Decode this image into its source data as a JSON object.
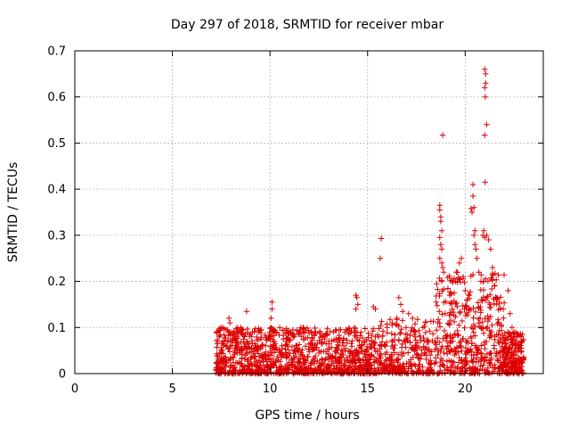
{
  "chart_data": {
    "type": "scatter",
    "title": "Day 297 of 2018, SRMTID for receiver mbar",
    "xlabel": "GPS time / hours",
    "ylabel": "SRMTID / TECUs",
    "xlim": [
      0,
      24
    ],
    "ylim": [
      0,
      0.7
    ],
    "xticks": [
      "0",
      "5",
      "10",
      "15",
      "20"
    ],
    "yticks": [
      "0",
      "0.1",
      "0.2",
      "0.3",
      "0.4",
      "0.5",
      "0.6",
      "0.7"
    ],
    "grid": true,
    "marker": "+",
    "color": "#dd0000",
    "series": [
      {
        "name": "mbar",
        "density_bands": [
          {
            "t_start": 7.2,
            "t_end": 15.5,
            "y_base": 0.0,
            "y_max": 0.1,
            "approx_points": 1100
          },
          {
            "t_start": 15.5,
            "t_end": 18.5,
            "y_base": 0.0,
            "y_max": 0.12,
            "approx_points": 300
          },
          {
            "t_start": 18.5,
            "t_end": 22.0,
            "y_base": 0.0,
            "y_max": 0.22,
            "approx_points": 450
          },
          {
            "t_start": 22.0,
            "t_end": 23.0,
            "y_base": 0.0,
            "y_max": 0.09,
            "approx_points": 200
          }
        ],
        "points": [
          [
            7.4,
            0.08
          ],
          [
            7.9,
            0.12
          ],
          [
            7.95,
            0.11
          ],
          [
            8.8,
            0.135
          ],
          [
            8.5,
            0.1
          ],
          [
            9.1,
            0.09
          ],
          [
            10.1,
            0.155
          ],
          [
            10.1,
            0.14
          ],
          [
            10.05,
            0.12
          ],
          [
            11.7,
            0.1
          ],
          [
            12.3,
            0.09
          ],
          [
            14.4,
            0.17
          ],
          [
            14.45,
            0.165
          ],
          [
            14.5,
            0.15
          ],
          [
            14.4,
            0.14
          ],
          [
            15.3,
            0.145
          ],
          [
            15.4,
            0.14
          ],
          [
            15.7,
            0.293
          ],
          [
            15.65,
            0.25
          ],
          [
            16.0,
            0.1
          ],
          [
            16.5,
            0.12
          ],
          [
            16.6,
            0.165
          ],
          [
            16.7,
            0.15
          ],
          [
            16.8,
            0.135
          ],
          [
            17.1,
            0.13
          ],
          [
            17.3,
            0.12
          ],
          [
            18.7,
            0.365
          ],
          [
            18.7,
            0.355
          ],
          [
            18.75,
            0.34
          ],
          [
            18.75,
            0.33
          ],
          [
            18.8,
            0.31
          ],
          [
            18.7,
            0.295
          ],
          [
            18.75,
            0.28
          ],
          [
            18.8,
            0.27
          ],
          [
            18.7,
            0.25
          ],
          [
            18.8,
            0.24
          ],
          [
            18.85,
            0.23
          ],
          [
            18.9,
            0.22
          ],
          [
            18.8,
            0.2
          ],
          [
            18.85,
            0.517
          ],
          [
            19.2,
            0.17
          ],
          [
            19.5,
            0.2
          ],
          [
            19.6,
            0.22
          ],
          [
            19.7,
            0.24
          ],
          [
            19.8,
            0.25
          ],
          [
            19.9,
            0.21
          ],
          [
            20.0,
            0.18
          ],
          [
            20.1,
            0.16
          ],
          [
            20.3,
            0.358
          ],
          [
            20.35,
            0.35
          ],
          [
            20.4,
            0.41
          ],
          [
            20.4,
            0.385
          ],
          [
            20.45,
            0.36
          ],
          [
            20.5,
            0.31
          ],
          [
            20.45,
            0.3
          ],
          [
            20.5,
            0.28
          ],
          [
            20.55,
            0.27
          ],
          [
            20.6,
            0.25
          ],
          [
            20.7,
            0.22
          ],
          [
            20.8,
            0.2
          ],
          [
            20.9,
            0.3
          ],
          [
            20.95,
            0.31
          ],
          [
            21.0,
            0.2954
          ],
          [
            21.0,
            0.517
          ],
          [
            21.02,
            0.415
          ],
          [
            21.03,
            0.6
          ],
          [
            21.0,
            0.66
          ],
          [
            21.05,
            0.65
          ],
          [
            21.05,
            0.63
          ],
          [
            21.0,
            0.62
          ],
          [
            21.1,
            0.54
          ],
          [
            21.1,
            0.3
          ],
          [
            21.2,
            0.29
          ],
          [
            21.3,
            0.27
          ],
          [
            21.4,
            0.23
          ],
          [
            21.5,
            0.19
          ],
          [
            21.6,
            0.16
          ],
          [
            22.2,
            0.18
          ],
          [
            22.3,
            0.13
          ],
          [
            22.4,
            0.1
          ],
          [
            22.5,
            0.09
          ]
        ]
      }
    ]
  }
}
